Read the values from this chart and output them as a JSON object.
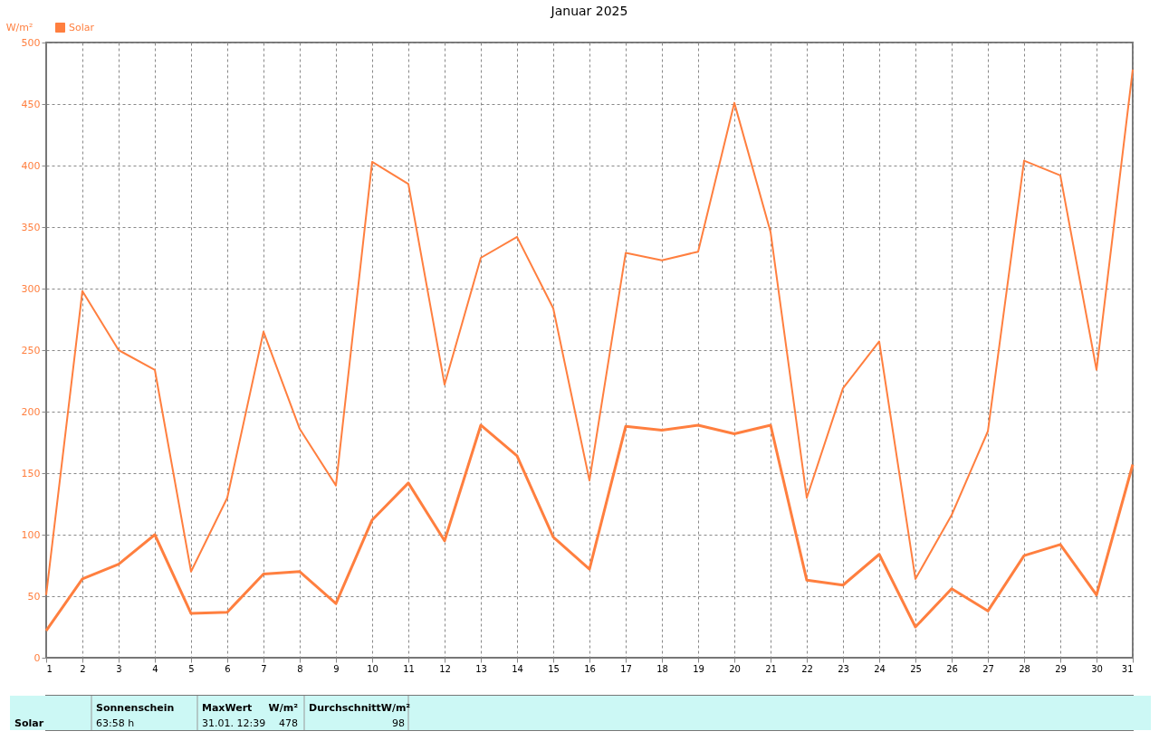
{
  "chart_data": {
    "type": "line",
    "title": "Januar 2025",
    "ylabel": "W/m²",
    "x": [
      1,
      2,
      3,
      4,
      5,
      6,
      7,
      8,
      9,
      10,
      11,
      12,
      13,
      14,
      15,
      16,
      17,
      18,
      19,
      20,
      21,
      22,
      23,
      24,
      25,
      26,
      27,
      28,
      29,
      30,
      31
    ],
    "series": [
      {
        "name": "Solar",
        "color": "#ff7f3f",
        "values": [
          22,
          64,
          76,
          100,
          36,
          37,
          68,
          70,
          44,
          112,
          142,
          95,
          189,
          164,
          98,
          72,
          188,
          185,
          189,
          182,
          189,
          63,
          59,
          84,
          25,
          56,
          38,
          83,
          92,
          51,
          157
        ]
      },
      {
        "color": "#ff7f3f",
        "values": [
          51,
          298,
          250,
          234,
          70,
          130,
          265,
          186,
          140,
          403,
          385,
          222,
          325,
          342,
          284,
          144,
          329,
          323,
          330,
          451,
          346,
          130,
          219,
          257,
          64,
          116,
          184,
          404,
          392,
          234,
          478
        ]
      }
    ],
    "xlim": [
      1,
      31
    ],
    "xticks": [
      1,
      2,
      3,
      4,
      5,
      6,
      7,
      8,
      9,
      10,
      11,
      12,
      13,
      14,
      15,
      16,
      17,
      18,
      19,
      20,
      21,
      22,
      23,
      24,
      25,
      26,
      27,
      28,
      29,
      30,
      31
    ],
    "ylim": [
      0,
      500
    ],
    "yticks": [
      0,
      50,
      100,
      150,
      200,
      250,
      300,
      350,
      400,
      450,
      500
    ],
    "grid": true,
    "legend": "top left",
    "line_style": "solid",
    "marker": "none",
    "annotations": [
      "Sonnenschein",
      "MaxWert",
      "W/m²",
      "DurchschnittW/m²",
      "Solar",
      "63:58 h",
      "31.01.  12:39",
      "478",
      "98"
    ]
  }
}
